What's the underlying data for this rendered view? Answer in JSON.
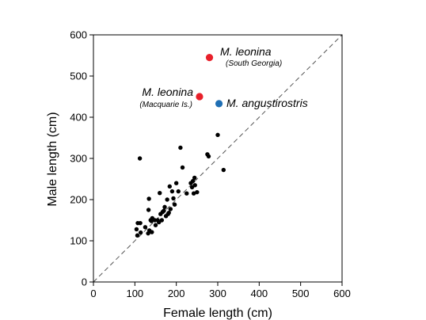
{
  "chart_data": {
    "type": "scatter",
    "title": "",
    "xlabel": "Female length (cm)",
    "ylabel": "Male length (cm)",
    "xlim": [
      0,
      600
    ],
    "ylim": [
      0,
      600
    ],
    "xticks": [
      0,
      100,
      200,
      300,
      400,
      500,
      600
    ],
    "yticks": [
      0,
      100,
      200,
      300,
      400,
      500,
      600
    ],
    "grid": false,
    "reference_line": {
      "type": "1:1",
      "style": "dashed",
      "color": "#555555"
    },
    "series": [
      {
        "color": "#000000",
        "points": [
          [
            104,
            128
          ],
          [
            106,
            113
          ],
          [
            107,
            143
          ],
          [
            112,
            300
          ],
          [
            113,
            143
          ],
          [
            114,
            120
          ],
          [
            125,
            133
          ],
          [
            132,
            118
          ],
          [
            133,
            175
          ],
          [
            134,
            202
          ],
          [
            135,
            125
          ],
          [
            138,
            150
          ],
          [
            140,
            148
          ],
          [
            141,
            121
          ],
          [
            142,
            155
          ],
          [
            148,
            150
          ],
          [
            150,
            138
          ],
          [
            155,
            150
          ],
          [
            158,
            145
          ],
          [
            160,
            216
          ],
          [
            162,
            165
          ],
          [
            165,
            150
          ],
          [
            167,
            170
          ],
          [
            170,
            173
          ],
          [
            172,
            182
          ],
          [
            175,
            160
          ],
          [
            178,
            200
          ],
          [
            180,
            165
          ],
          [
            182,
            168
          ],
          [
            184,
            232
          ],
          [
            186,
            177
          ],
          [
            190,
            220
          ],
          [
            193,
            203
          ],
          [
            196,
            188
          ],
          [
            200,
            240
          ],
          [
            205,
            220
          ],
          [
            210,
            326
          ],
          [
            215,
            278
          ],
          [
            225,
            215
          ],
          [
            235,
            240
          ],
          [
            238,
            230
          ],
          [
            240,
            245
          ],
          [
            242,
            215
          ],
          [
            244,
            253
          ],
          [
            245,
            235
          ],
          [
            250,
            218
          ],
          [
            275,
            310
          ],
          [
            278,
            305
          ],
          [
            300,
            357
          ],
          [
            314,
            272
          ]
        ]
      },
      {
        "name": "M. leonina",
        "color": "#e8202a",
        "points": [
          [
            256,
            450
          ]
        ]
      },
      {
        "name": "M. leonina",
        "color": "#e8202a",
        "points": [
          [
            280,
            545
          ]
        ]
      },
      {
        "name": "M. angustirostris",
        "color": "#1f6fb4",
        "points": [
          [
            303,
            433
          ]
        ]
      }
    ],
    "annotations": [
      {
        "main": "M. leonina",
        "sub": "(Macquarie Is.)"
      },
      {
        "main": "M. leonina",
        "sub": "(South Georgia)"
      },
      {
        "main": "M. angustirostris"
      }
    ]
  }
}
